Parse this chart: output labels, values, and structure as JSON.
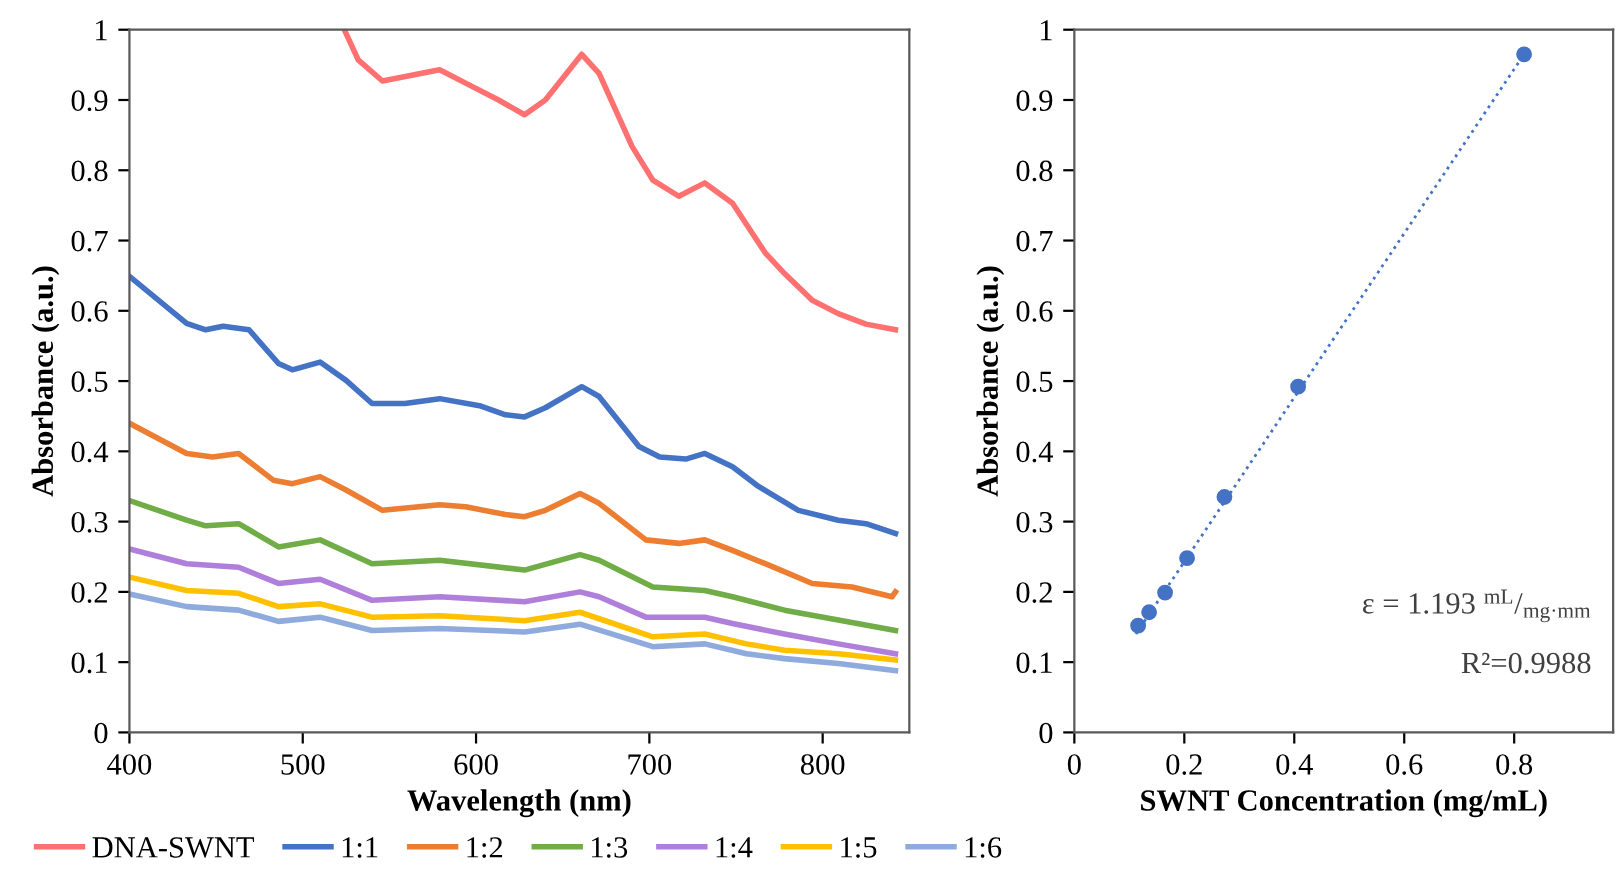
{
  "chart_data": [
    {
      "type": "line",
      "xlabel": "Wavelength (nm)",
      "ylabel": "Absorbance (a.u.)",
      "xlim": [
        400,
        850
      ],
      "xticks": [
        400,
        500,
        600,
        700,
        800
      ],
      "ylim": [
        0,
        1
      ],
      "yticks": [
        0,
        0.1,
        0.2,
        0.3,
        0.4,
        0.5,
        0.6,
        0.7,
        0.8,
        0.9,
        1
      ],
      "grid": false,
      "legend": "bottom",
      "marker": "none",
      "line_style": "solid",
      "series": [
        {
          "name": "DNA-SWNT",
          "color": "#ff7070",
          "x": [
            524,
            532,
            546,
            579,
            594,
            613,
            628,
            640,
            661,
            671,
            690,
            702,
            717,
            732,
            748,
            767,
            778,
            794,
            809,
            825,
            842
          ],
          "values": [
            1.0,
            0.957,
            0.927,
            0.943,
            0.924,
            0.9,
            0.879,
            0.9,
            0.965,
            0.938,
            0.834,
            0.786,
            0.763,
            0.782,
            0.753,
            0.682,
            0.653,
            0.615,
            0.596,
            0.581,
            0.573
          ]
        },
        {
          "name": "1:1",
          "color": "#4472c4",
          "x": [
            400,
            433,
            444,
            454,
            469,
            486,
            494,
            510,
            525,
            540,
            559,
            579,
            602,
            617,
            628,
            640,
            661,
            671,
            694,
            706,
            721,
            732,
            748,
            763,
            786,
            809,
            825,
            842
          ],
          "values": [
            0.649,
            0.582,
            0.573,
            0.578,
            0.573,
            0.525,
            0.516,
            0.527,
            0.501,
            0.468,
            0.468,
            0.475,
            0.465,
            0.452,
            0.449,
            0.462,
            0.492,
            0.478,
            0.407,
            0.392,
            0.389,
            0.397,
            0.378,
            0.35,
            0.316,
            0.302,
            0.297,
            0.283
          ]
        },
        {
          "name": "1:2",
          "color": "#ed7d31",
          "x": [
            400,
            433,
            448,
            463,
            483,
            494,
            510,
            525,
            546,
            579,
            594,
            617,
            628,
            640,
            660,
            671,
            698,
            717,
            732,
            748,
            771,
            794,
            817,
            840,
            842
          ],
          "values": [
            0.44,
            0.397,
            0.392,
            0.397,
            0.359,
            0.354,
            0.364,
            0.345,
            0.316,
            0.324,
            0.321,
            0.31,
            0.307,
            0.316,
            0.34,
            0.326,
            0.274,
            0.269,
            0.274,
            0.259,
            0.236,
            0.212,
            0.207,
            0.193,
            0.2
          ]
        },
        {
          "name": "1:3",
          "color": "#70ad47",
          "x": [
            400,
            433,
            444,
            463,
            486,
            510,
            540,
            579,
            628,
            660,
            671,
            702,
            732,
            748,
            778,
            809,
            842
          ],
          "values": [
            0.33,
            0.302,
            0.294,
            0.297,
            0.264,
            0.274,
            0.24,
            0.245,
            0.231,
            0.253,
            0.245,
            0.207,
            0.202,
            0.193,
            0.174,
            0.16,
            0.145
          ]
        },
        {
          "name": "1:4",
          "color": "#b07fdc",
          "x": [
            400,
            433,
            463,
            486,
            510,
            540,
            579,
            628,
            660,
            671,
            698,
            732,
            748,
            778,
            809,
            842
          ],
          "values": [
            0.261,
            0.24,
            0.235,
            0.212,
            0.218,
            0.188,
            0.193,
            0.186,
            0.2,
            0.193,
            0.164,
            0.164,
            0.155,
            0.14,
            0.126,
            0.112
          ]
        },
        {
          "name": "1:5",
          "color": "#ffc000",
          "x": [
            400,
            433,
            463,
            486,
            510,
            540,
            579,
            628,
            660,
            702,
            732,
            756,
            778,
            809,
            842
          ],
          "values": [
            0.221,
            0.202,
            0.198,
            0.179,
            0.183,
            0.164,
            0.166,
            0.159,
            0.171,
            0.136,
            0.14,
            0.126,
            0.117,
            0.112,
            0.103
          ]
        },
        {
          "name": "1:6",
          "color": "#8faadc",
          "x": [
            400,
            433,
            463,
            486,
            510,
            540,
            579,
            628,
            660,
            702,
            732,
            756,
            778,
            809,
            842
          ],
          "values": [
            0.197,
            0.179,
            0.174,
            0.158,
            0.164,
            0.145,
            0.148,
            0.143,
            0.154,
            0.122,
            0.126,
            0.112,
            0.105,
            0.098,
            0.088
          ]
        }
      ]
    },
    {
      "type": "scatter",
      "xlabel": "SWNT Concentration (mg/mL)",
      "ylabel": "Absorbance (a.u.)",
      "xlim": [
        0,
        0.98
      ],
      "xticks": [
        0,
        0.2,
        0.4,
        0.6,
        0.8
      ],
      "ylim": [
        0,
        1
      ],
      "yticks": [
        0,
        0.1,
        0.2,
        0.3,
        0.4,
        0.5,
        0.6,
        0.7,
        0.8,
        0.9,
        1
      ],
      "grid": false,
      "legend": false,
      "marker": "circle",
      "annotations": [
        "ε = 1.193 $^{mL}$/$_{mg·mm}$",
        "R²=0.9988"
      ],
      "series": [
        {
          "type": "scatter",
          "color": "#4472c4",
          "x": [
            0.116,
            0.136,
            0.165,
            0.205,
            0.273,
            0.407,
            0.818
          ],
          "values": [
            0.152,
            0.171,
            0.199,
            0.248,
            0.335,
            0.492,
            0.965
          ]
        },
        {
          "type": "line",
          "color": "#4472c4",
          "line_style": "dotted",
          "marker": "none",
          "x": [
            0.112,
            0.818
          ],
          "values": [
            0.14,
            0.965
          ]
        }
      ]
    }
  ]
}
